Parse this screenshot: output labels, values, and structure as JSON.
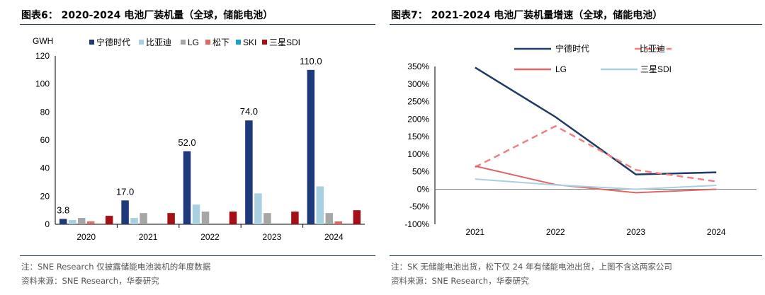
{
  "left": {
    "title": "图表6：  2020-2024 电池厂装机量（全球，储能电池）",
    "note": "注：SNE Research 仅披露储能电池装机的年度数据",
    "source": "资料来源：SNE Research，华泰研究"
  },
  "right": {
    "title": "图表7：  2021-2024 电池厂装机量增速（全球，储能电池）",
    "note": "注：SK 无储能电池出货，松下仅 24 年有储能电池出货，上图不含这两家公司",
    "source": "资料来源：SNE Research，华泰研究"
  },
  "chart_data": [
    {
      "type": "bar",
      "title": "2020-2024 电池厂装机量（全球，储能电池）",
      "ylabel": "GWH",
      "ylim": [
        0,
        120
      ],
      "yticks": [
        "0",
        "20",
        "40",
        "60",
        "80",
        "100",
        "120"
      ],
      "categories": [
        "2020",
        "2021",
        "2022",
        "2023",
        "2024"
      ],
      "legend_position": "top",
      "series": [
        {
          "name": "宁德时代",
          "color": "#1f3a7a",
          "values": [
            3.8,
            17.0,
            52.0,
            74.0,
            110.0
          ]
        },
        {
          "name": "比亚迪",
          "color": "#a9d0e0",
          "values": [
            3.0,
            4.5,
            14.0,
            22.0,
            27.0
          ]
        },
        {
          "name": "LG",
          "color": "#a6a6a6",
          "values": [
            4.5,
            8.0,
            9.0,
            8.0,
            8.0
          ]
        },
        {
          "name": "松下",
          "color": "#e06666",
          "values": [
            2.0,
            0,
            0,
            0,
            2.0
          ]
        },
        {
          "name": "SKI",
          "color": "#14a0c8",
          "values": [
            0,
            0,
            0,
            0,
            0
          ]
        },
        {
          "name": "三星SDI",
          "color": "#a50f15",
          "values": [
            6.0,
            8.0,
            9.0,
            9.0,
            10.0
          ]
        }
      ],
      "data_labels": [
        "3.8",
        "17.0",
        "52.0",
        "74.0",
        "110.0"
      ]
    },
    {
      "type": "line",
      "title": "2021-2024 电池厂装机量增速（全球，储能电池）",
      "ylim": [
        -100,
        350
      ],
      "yticks": [
        "-100%",
        "-50%",
        "0%",
        "50%",
        "100%",
        "150%",
        "200%",
        "250%",
        "300%",
        "350%"
      ],
      "categories": [
        "2021",
        "2022",
        "2023",
        "2024"
      ],
      "legend_position": "top",
      "series": [
        {
          "name": "宁德时代",
          "color": "#1f3a66",
          "style": "solid",
          "values": [
            347,
            206,
            42,
            48
          ]
        },
        {
          "name": "比亚迪",
          "color": "#f08080",
          "style": "dashed",
          "values": [
            63,
            180,
            55,
            22
          ]
        },
        {
          "name": "LG",
          "color": "#e06666",
          "style": "solid",
          "values": [
            66,
            13,
            -10,
            0
          ]
        },
        {
          "name": "三星SDI",
          "color": "#a9d0e0",
          "style": "solid",
          "values": [
            29,
            12,
            0,
            11
          ]
        }
      ]
    }
  ]
}
